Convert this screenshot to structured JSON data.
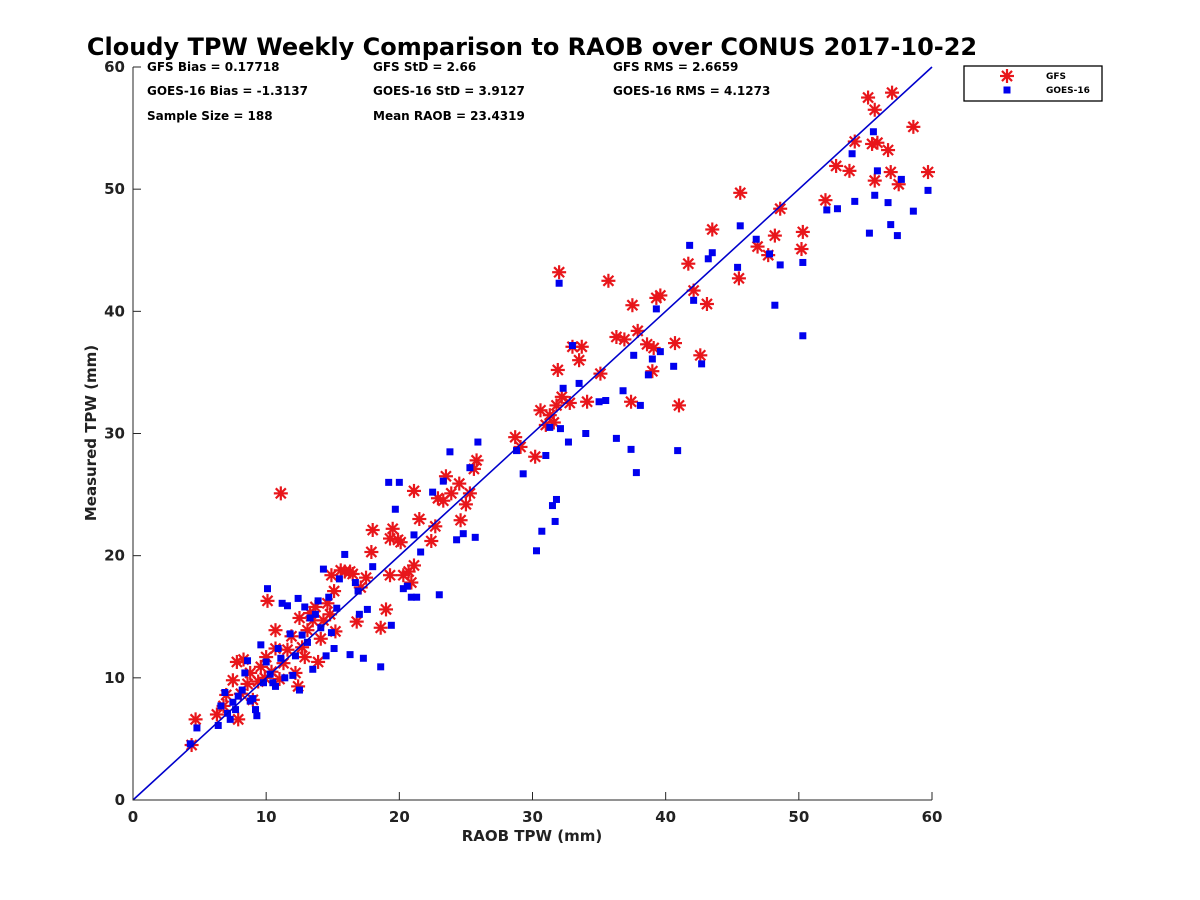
{
  "chart_data": {
    "type": "scatter",
    "title": "Cloudy TPW Weekly Comparison to RAOB over CONUS 2017-10-22",
    "xlabel": "RAOB TPW (mm)",
    "ylabel": "Measured TPW (mm)",
    "xlim": [
      0,
      60
    ],
    "ylim": [
      0,
      60
    ],
    "xticks": [
      0,
      10,
      20,
      30,
      40,
      50,
      60
    ],
    "yticks": [
      0,
      10,
      20,
      30,
      40,
      50,
      60
    ],
    "grid": false,
    "legend_position": "outside-top-right",
    "stats": [
      [
        "GFS Bias = 0.17718",
        "GFS StD = 2.66",
        "GFS RMS = 2.6659"
      ],
      [
        "GOES-16 Bias = -1.3137",
        "GOES-16 StD = 3.9127",
        "GOES-16 RMS = 4.1273"
      ],
      [
        "Sample Size = 188",
        "Mean RAOB = 23.4319",
        ""
      ]
    ],
    "reference_line": {
      "x": [
        0,
        60
      ],
      "y": [
        0,
        60
      ],
      "color": "#0000cc"
    },
    "series": [
      {
        "name": "GFS",
        "marker": "asterisk",
        "color": "#e8161b",
        "points": [
          [
            4.4,
            4.5
          ],
          [
            4.7,
            6.6
          ],
          [
            6.3,
            7.0
          ],
          [
            6.8,
            7.7
          ],
          [
            7.0,
            8.6
          ],
          [
            7.5,
            9.8
          ],
          [
            7.8,
            11.3
          ],
          [
            7.9,
            6.6
          ],
          [
            8.1,
            8.7
          ],
          [
            8.3,
            11.5
          ],
          [
            8.6,
            9.5
          ],
          [
            8.8,
            10.4
          ],
          [
            9.0,
            8.2
          ],
          [
            9.4,
            9.7
          ],
          [
            9.6,
            10.9
          ],
          [
            9.9,
            10.0
          ],
          [
            10.0,
            11.7
          ],
          [
            10.1,
            16.3
          ],
          [
            10.4,
            10.5
          ],
          [
            10.7,
            12.4
          ],
          [
            10.7,
            13.9
          ],
          [
            11.0,
            9.9
          ],
          [
            11.1,
            25.1
          ],
          [
            11.3,
            11.2
          ],
          [
            11.6,
            12.3
          ],
          [
            11.9,
            13.4
          ],
          [
            12.2,
            10.4
          ],
          [
            12.4,
            9.3
          ],
          [
            12.5,
            14.9
          ],
          [
            12.7,
            12.5
          ],
          [
            12.9,
            11.7
          ],
          [
            13.1,
            13.9
          ],
          [
            13.3,
            15.3
          ],
          [
            13.5,
            14.7
          ],
          [
            13.7,
            15.8
          ],
          [
            13.9,
            11.3
          ],
          [
            14.1,
            13.2
          ],
          [
            14.3,
            14.7
          ],
          [
            14.6,
            16.1
          ],
          [
            14.8,
            15.2
          ],
          [
            14.9,
            18.4
          ],
          [
            15.1,
            17.1
          ],
          [
            15.2,
            13.8
          ],
          [
            15.6,
            18.8
          ],
          [
            15.9,
            18.7
          ],
          [
            16.3,
            18.7
          ],
          [
            16.5,
            18.5
          ],
          [
            16.8,
            14.6
          ],
          [
            17.1,
            17.4
          ],
          [
            17.5,
            18.2
          ],
          [
            17.9,
            20.3
          ],
          [
            18.0,
            22.1
          ],
          [
            18.6,
            14.1
          ],
          [
            19.0,
            15.6
          ],
          [
            19.3,
            18.4
          ],
          [
            19.3,
            21.4
          ],
          [
            19.5,
            22.2
          ],
          [
            19.9,
            21.3
          ],
          [
            20.1,
            21.1
          ],
          [
            20.3,
            18.4
          ],
          [
            20.7,
            18.7
          ],
          [
            20.9,
            17.8
          ],
          [
            21.1,
            19.2
          ],
          [
            21.1,
            25.3
          ],
          [
            21.5,
            23.0
          ],
          [
            22.4,
            21.2
          ],
          [
            22.7,
            22.4
          ],
          [
            22.9,
            24.7
          ],
          [
            23.3,
            24.5
          ],
          [
            23.5,
            26.5
          ],
          [
            23.9,
            25.1
          ],
          [
            24.5,
            25.9
          ],
          [
            24.6,
            22.9
          ],
          [
            25.0,
            24.2
          ],
          [
            25.3,
            25.1
          ],
          [
            25.6,
            27.1
          ],
          [
            25.8,
            27.8
          ],
          [
            28.7,
            29.7
          ],
          [
            29.1,
            28.9
          ],
          [
            30.2,
            28.1
          ],
          [
            30.6,
            31.9
          ],
          [
            31.0,
            30.7
          ],
          [
            31.3,
            31.5
          ],
          [
            31.6,
            30.9
          ],
          [
            31.8,
            32.3
          ],
          [
            31.9,
            35.2
          ],
          [
            32.0,
            43.2
          ],
          [
            32.2,
            33.0
          ],
          [
            32.8,
            32.5
          ],
          [
            33.0,
            37.1
          ],
          [
            33.5,
            36.0
          ],
          [
            33.7,
            37.1
          ],
          [
            34.1,
            32.6
          ],
          [
            35.1,
            34.9
          ],
          [
            35.7,
            42.5
          ],
          [
            36.3,
            37.9
          ],
          [
            36.9,
            37.7
          ],
          [
            37.4,
            32.6
          ],
          [
            37.5,
            40.5
          ],
          [
            37.9,
            38.4
          ],
          [
            38.6,
            37.3
          ],
          [
            39.0,
            35.1
          ],
          [
            39.1,
            37.0
          ],
          [
            39.3,
            41.1
          ],
          [
            39.6,
            41.3
          ],
          [
            40.7,
            37.4
          ],
          [
            41.0,
            32.3
          ],
          [
            41.7,
            43.9
          ],
          [
            42.1,
            41.7
          ],
          [
            42.6,
            36.4
          ],
          [
            43.1,
            40.6
          ],
          [
            43.5,
            46.7
          ],
          [
            45.5,
            42.7
          ],
          [
            45.6,
            49.7
          ],
          [
            46.9,
            45.3
          ],
          [
            47.7,
            44.6
          ],
          [
            48.2,
            46.2
          ],
          [
            48.6,
            48.4
          ],
          [
            50.2,
            45.1
          ],
          [
            50.3,
            46.5
          ],
          [
            52.0,
            49.1
          ],
          [
            52.8,
            51.9
          ],
          [
            53.8,
            51.5
          ],
          [
            54.2,
            53.9
          ],
          [
            55.2,
            57.5
          ],
          [
            55.5,
            53.7
          ],
          [
            55.7,
            56.5
          ],
          [
            55.7,
            50.7
          ],
          [
            55.9,
            53.8
          ],
          [
            56.7,
            53.2
          ],
          [
            56.9,
            51.4
          ],
          [
            57.0,
            57.9
          ],
          [
            57.5,
            50.4
          ],
          [
            58.6,
            55.1
          ],
          [
            59.7,
            51.4
          ]
        ]
      },
      {
        "name": "GOES-16",
        "marker": "square",
        "color": "#0000ee",
        "points": [
          [
            4.3,
            4.6
          ],
          [
            4.8,
            5.9
          ],
          [
            6.4,
            6.1
          ],
          [
            6.6,
            7.7
          ],
          [
            6.9,
            8.8
          ],
          [
            7.1,
            7.1
          ],
          [
            7.3,
            6.6
          ],
          [
            7.5,
            8.0
          ],
          [
            7.7,
            7.4
          ],
          [
            7.9,
            8.5
          ],
          [
            8.2,
            9.0
          ],
          [
            8.4,
            10.4
          ],
          [
            8.6,
            11.4
          ],
          [
            8.8,
            8.1
          ],
          [
            9.0,
            8.3
          ],
          [
            9.2,
            7.4
          ],
          [
            9.3,
            6.9
          ],
          [
            9.6,
            12.7
          ],
          [
            9.8,
            9.6
          ],
          [
            10.0,
            11.3
          ],
          [
            10.1,
            17.3
          ],
          [
            10.3,
            10.3
          ],
          [
            10.5,
            9.6
          ],
          [
            10.7,
            9.3
          ],
          [
            10.9,
            12.4
          ],
          [
            11.1,
            11.6
          ],
          [
            11.2,
            16.1
          ],
          [
            11.4,
            10.0
          ],
          [
            11.6,
            15.9
          ],
          [
            11.8,
            13.6
          ],
          [
            12.0,
            10.2
          ],
          [
            12.2,
            11.8
          ],
          [
            12.4,
            16.5
          ],
          [
            12.5,
            9.0
          ],
          [
            12.7,
            13.5
          ],
          [
            12.9,
            15.8
          ],
          [
            13.1,
            12.9
          ],
          [
            13.3,
            14.9
          ],
          [
            13.5,
            10.7
          ],
          [
            13.7,
            15.2
          ],
          [
            13.9,
            16.3
          ],
          [
            14.1,
            14.1
          ],
          [
            14.3,
            18.9
          ],
          [
            14.5,
            11.8
          ],
          [
            14.7,
            16.6
          ],
          [
            14.9,
            13.7
          ],
          [
            15.1,
            12.4
          ],
          [
            15.3,
            15.7
          ],
          [
            15.5,
            18.1
          ],
          [
            15.9,
            20.1
          ],
          [
            16.3,
            11.9
          ],
          [
            16.7,
            17.8
          ],
          [
            16.9,
            17.1
          ],
          [
            17.0,
            15.2
          ],
          [
            17.3,
            11.6
          ],
          [
            17.6,
            15.6
          ],
          [
            18.0,
            19.1
          ],
          [
            18.6,
            10.9
          ],
          [
            19.2,
            26.0
          ],
          [
            19.4,
            14.3
          ],
          [
            19.7,
            23.8
          ],
          [
            20.0,
            26.0
          ],
          [
            20.3,
            17.3
          ],
          [
            20.6,
            17.5
          ],
          [
            20.9,
            16.6
          ],
          [
            21.1,
            21.7
          ],
          [
            21.3,
            16.6
          ],
          [
            21.6,
            20.3
          ],
          [
            22.5,
            25.2
          ],
          [
            23.0,
            16.8
          ],
          [
            23.3,
            26.1
          ],
          [
            23.8,
            28.5
          ],
          [
            24.3,
            21.3
          ],
          [
            24.8,
            21.8
          ],
          [
            25.3,
            27.2
          ],
          [
            25.7,
            21.5
          ],
          [
            25.9,
            29.3
          ],
          [
            28.8,
            28.6
          ],
          [
            29.3,
            26.7
          ],
          [
            30.3,
            20.4
          ],
          [
            30.7,
            22.0
          ],
          [
            31.0,
            28.2
          ],
          [
            31.3,
            30.5
          ],
          [
            31.5,
            24.1
          ],
          [
            31.7,
            22.8
          ],
          [
            31.8,
            24.6
          ],
          [
            32.0,
            42.3
          ],
          [
            32.1,
            30.4
          ],
          [
            32.3,
            33.7
          ],
          [
            32.7,
            29.3
          ],
          [
            33.0,
            37.2
          ],
          [
            33.5,
            34.1
          ],
          [
            34.0,
            30.0
          ],
          [
            35.0,
            32.6
          ],
          [
            35.5,
            32.7
          ],
          [
            36.3,
            29.6
          ],
          [
            36.8,
            33.5
          ],
          [
            37.4,
            28.7
          ],
          [
            37.6,
            36.4
          ],
          [
            37.8,
            26.8
          ],
          [
            38.1,
            32.3
          ],
          [
            38.7,
            34.8
          ],
          [
            39.0,
            36.1
          ],
          [
            39.3,
            40.2
          ],
          [
            39.6,
            36.7
          ],
          [
            40.6,
            35.5
          ],
          [
            40.9,
            28.6
          ],
          [
            41.8,
            45.4
          ],
          [
            42.1,
            40.9
          ],
          [
            42.7,
            35.7
          ],
          [
            43.2,
            44.3
          ],
          [
            43.5,
            44.8
          ],
          [
            45.4,
            43.6
          ],
          [
            45.6,
            47.0
          ],
          [
            46.8,
            45.9
          ],
          [
            47.8,
            44.7
          ],
          [
            48.2,
            40.5
          ],
          [
            48.6,
            43.8
          ],
          [
            50.3,
            44.0
          ],
          [
            50.3,
            38.0
          ],
          [
            52.1,
            48.3
          ],
          [
            52.9,
            48.4
          ],
          [
            54.0,
            52.9
          ],
          [
            54.2,
            49.0
          ],
          [
            55.3,
            46.4
          ],
          [
            55.6,
            54.7
          ],
          [
            55.7,
            49.5
          ],
          [
            55.9,
            51.5
          ],
          [
            56.7,
            48.9
          ],
          [
            56.9,
            47.1
          ],
          [
            57.4,
            46.2
          ],
          [
            57.7,
            50.8
          ],
          [
            58.6,
            48.2
          ],
          [
            59.7,
            49.9
          ]
        ]
      }
    ]
  }
}
